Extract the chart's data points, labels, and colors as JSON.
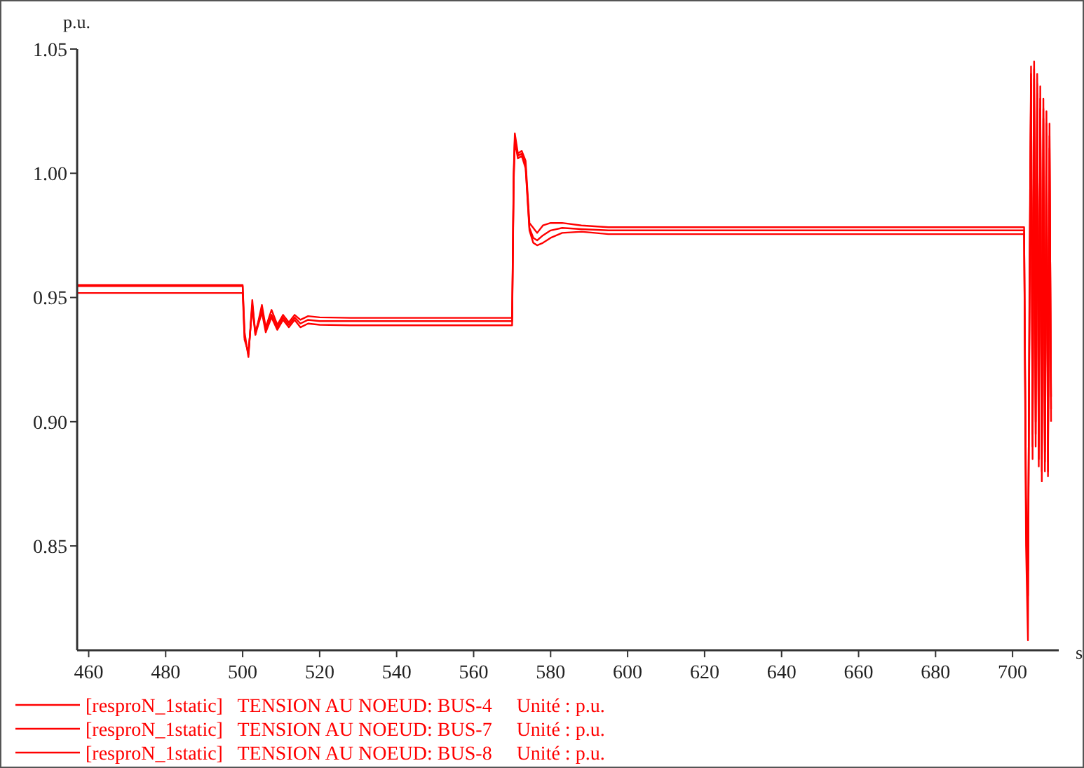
{
  "chart_data": {
    "type": "line",
    "ylabel": "p.u.",
    "xlabel": "s",
    "xlim": [
      457,
      712
    ],
    "ylim": [
      0.808,
      1.05
    ],
    "xticks": [
      460,
      480,
      500,
      520,
      540,
      560,
      580,
      600,
      620,
      640,
      660,
      680,
      700
    ],
    "yticks": [
      {
        "value": 0.85,
        "label": "0.85"
      },
      {
        "value": 0.9,
        "label": "0.90"
      },
      {
        "value": 0.95,
        "label": "0.95"
      },
      {
        "value": 1,
        "label": "1.00"
      },
      {
        "value": 1.05,
        "label": "1.05"
      }
    ],
    "grid": false,
    "legend": "bottom left",
    "marker": "none",
    "line_style": "solid",
    "series": [
      {
        "name": "[resproN_1static]   TENSION AU NOEUD: BUS-4     Unité : p.u.",
        "color": "#ff0000",
        "x": [
          457,
          500,
          500.5,
          501.5,
          502.5,
          503.3,
          505,
          506,
          507.5,
          509,
          510.5,
          512,
          513.5,
          515,
          517,
          520,
          528,
          570,
          570.4,
          570.7,
          571.5,
          572.5,
          573.5,
          574.5,
          575.5,
          576.5,
          578,
          580,
          583,
          588,
          595,
          703,
          703.5,
          704,
          704.4,
          704.8,
          705.2,
          705.6,
          706,
          706.4,
          706.8,
          707.2,
          707.6,
          708,
          708.4,
          708.8,
          709.2,
          709.6,
          710
        ],
        "values": [
          0.955,
          0.955,
          0.936,
          0.926,
          0.949,
          0.935,
          0.947,
          0.938,
          0.945,
          0.939,
          0.943,
          0.94,
          0.943,
          0.941,
          0.9425,
          0.942,
          0.9418,
          0.9418,
          1.0,
          1.016,
          1.008,
          1.009,
          1.005,
          0.98,
          0.978,
          0.976,
          0.979,
          0.98,
          0.98,
          0.979,
          0.9783,
          0.9783,
          0.85,
          0.812,
          0.96,
          1.043,
          0.885,
          1.045,
          0.89,
          1.04,
          0.882,
          1.035,
          0.876,
          1.03,
          0.88,
          1.025,
          0.878,
          1.02,
          0.9
        ]
      },
      {
        "name": "[resproN_1static]   TENSION AU NOEUD: BUS-7     Unité : p.u.",
        "color": "#ff0000",
        "x": [
          457,
          500,
          500.5,
          501.5,
          502.5,
          503.3,
          505,
          506,
          507.5,
          509,
          510.5,
          512,
          513.5,
          515,
          517,
          520,
          528,
          570,
          570.4,
          570.7,
          571.5,
          572.5,
          573.5,
          574.5,
          575.5,
          576.5,
          578,
          580,
          583,
          588,
          595,
          703,
          703.5,
          704,
          704.4,
          704.8,
          705.2,
          705.6,
          706,
          706.4,
          706.8,
          707.2,
          707.6,
          708,
          708.4,
          708.8,
          709.2,
          709.6,
          710
        ],
        "values": [
          0.9546,
          0.9546,
          0.934,
          0.927,
          0.947,
          0.936,
          0.945,
          0.937,
          0.943,
          0.938,
          0.942,
          0.939,
          0.942,
          0.9395,
          0.941,
          0.9405,
          0.9405,
          0.9405,
          0.998,
          1.014,
          1.007,
          1.008,
          1.003,
          0.978,
          0.974,
          0.973,
          0.975,
          0.977,
          0.978,
          0.9775,
          0.977,
          0.977,
          0.86,
          0.83,
          0.95,
          1.04,
          0.89,
          1.042,
          0.895,
          1.036,
          0.885,
          1.03,
          0.88,
          1.026,
          0.884,
          1.02,
          0.88,
          1.015,
          0.905
        ]
      },
      {
        "name": "[resproN_1static]   TENSION AU NOEUD: BUS-8     Unité : p.u.",
        "color": "#ff0000",
        "x": [
          457,
          500,
          500.5,
          501.5,
          502.5,
          503.3,
          505,
          506,
          507.5,
          509,
          510.5,
          512,
          513.5,
          515,
          517,
          520,
          528,
          570,
          570.4,
          570.7,
          571.5,
          572.5,
          573.5,
          574.5,
          575.5,
          576.5,
          578,
          580,
          583,
          588,
          595,
          703,
          703.5,
          704,
          704.4,
          704.8,
          705.2,
          705.6,
          706,
          706.4,
          706.8,
          707.2,
          707.6,
          708,
          708.4,
          708.8,
          709.2,
          709.6,
          710
        ],
        "values": [
          0.9518,
          0.9518,
          0.933,
          0.928,
          0.946,
          0.935,
          0.944,
          0.936,
          0.942,
          0.937,
          0.941,
          0.938,
          0.941,
          0.938,
          0.9395,
          0.939,
          0.9388,
          0.9388,
          0.996,
          1.013,
          1.006,
          1.007,
          1.002,
          0.977,
          0.972,
          0.971,
          0.972,
          0.974,
          0.976,
          0.9765,
          0.9755,
          0.9755,
          0.87,
          0.84,
          0.94,
          1.036,
          0.895,
          1.038,
          0.9,
          1.032,
          0.89,
          1.026,
          0.885,
          1.022,
          0.888,
          1.016,
          0.884,
          1.01,
          0.91
        ]
      }
    ]
  }
}
